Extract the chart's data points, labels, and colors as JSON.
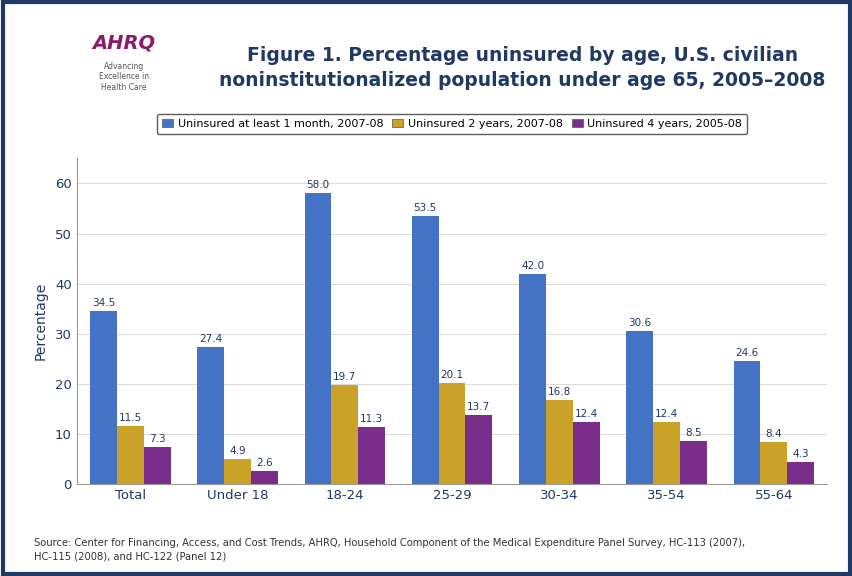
{
  "title": "Figure 1. Percentage uninsured by age, U.S. civilian\nnoninstitutionalized population under age 65, 2005–2008",
  "categories": [
    "Total",
    "Under 18",
    "18-24",
    "25-29",
    "30-34",
    "35-54",
    "55-64"
  ],
  "series": [
    {
      "label": "Uninsured at least 1 month, 2007-08",
      "color": "#4472C4",
      "values": [
        34.5,
        27.4,
        58.0,
        53.5,
        42.0,
        30.6,
        24.6
      ]
    },
    {
      "label": "Uninsured 2 years, 2007-08",
      "color": "#C9A227",
      "values": [
        11.5,
        4.9,
        19.7,
        20.1,
        16.8,
        12.4,
        8.4
      ]
    },
    {
      "label": "Uninsured 4 years, 2005-08",
      "color": "#7B2D8B",
      "values": [
        7.3,
        2.6,
        11.3,
        13.7,
        12.4,
        8.5,
        4.3
      ]
    }
  ],
  "ylabel": "Percentage",
  "ylim": [
    0,
    65
  ],
  "yticks": [
    0,
    10,
    20,
    30,
    40,
    50,
    60
  ],
  "bar_width": 0.25,
  "background_color": "#FFFFFF",
  "plot_bg_color": "#FFFFFF",
  "title_color": "#1F3864",
  "axis_label_color": "#1F3864",
  "tick_label_color": "#1F3864",
  "legend_border_color": "#000000",
  "source_text": "Source: Center for Financing, Access, and Cost Trends, AHRQ, Household Component of the Medical Expenditure Panel Survey, HC-113 (2007),\nHC-115 (2008), and HC-122 (Panel 12)",
  "header_line_color": "#1F3864",
  "outer_border_color": "#1F3864",
  "logo_bg_color": "#1976A8",
  "logo_box_color": "#FFFFFF"
}
